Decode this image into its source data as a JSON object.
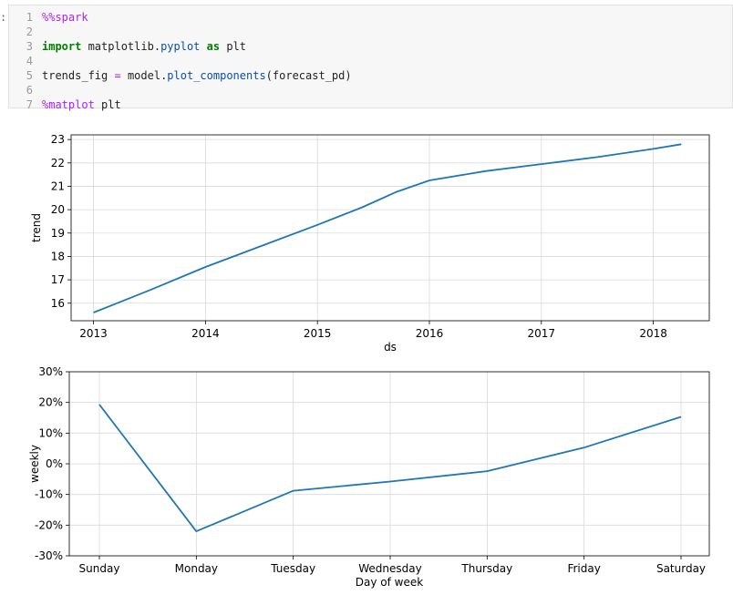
{
  "notebook": {
    "prompt_mark": ":",
    "code_lines": [
      {
        "n": "1",
        "parts": [
          {
            "t": "%%spark",
            "c": "magic"
          }
        ]
      },
      {
        "n": "2",
        "parts": []
      },
      {
        "n": "3",
        "parts": [
          {
            "t": "import",
            "c": "kw"
          },
          {
            "t": " matplotlib.",
            "c": ""
          },
          {
            "t": "pyplot",
            "c": "mod"
          },
          {
            "t": " ",
            "c": ""
          },
          {
            "t": "as",
            "c": "kw"
          },
          {
            "t": " plt",
            "c": ""
          }
        ]
      },
      {
        "n": "4",
        "parts": []
      },
      {
        "n": "5",
        "parts": [
          {
            "t": "trends_fig ",
            "c": ""
          },
          {
            "t": "=",
            "c": "op"
          },
          {
            "t": " model.",
            "c": ""
          },
          {
            "t": "plot_components",
            "c": "fn"
          },
          {
            "t": "(forecast_pd)",
            "c": ""
          }
        ]
      },
      {
        "n": "6",
        "parts": []
      },
      {
        "n": "7",
        "parts": [
          {
            "t": "%matplot",
            "c": "magic"
          },
          {
            "t": " plt",
            "c": ""
          }
        ]
      }
    ]
  },
  "colors": {
    "line": "#1f77b4",
    "grid": "#d9d9d9",
    "axis": "#000000"
  },
  "chart_data": [
    {
      "type": "line",
      "title": "",
      "xlabel": "ds",
      "ylabel": "trend",
      "xlim": [
        2012.8,
        2018.5
      ],
      "ylim": [
        15.25,
        23.2
      ],
      "x_ticks": [
        2013,
        2014,
        2015,
        2016,
        2017,
        2018
      ],
      "x_tick_labels": [
        "2013",
        "2014",
        "2015",
        "2016",
        "2017",
        "2018"
      ],
      "y_ticks": [
        16,
        17,
        18,
        19,
        20,
        21,
        22,
        23
      ],
      "y_tick_labels": [
        "16",
        "17",
        "18",
        "19",
        "20",
        "21",
        "22",
        "23"
      ],
      "grid": true,
      "series": [
        {
          "x": [
            2013.0,
            2013.5,
            2014.0,
            2014.5,
            2015.0,
            2015.4,
            2015.7,
            2016.0,
            2016.5,
            2017.0,
            2017.5,
            2018.0,
            2018.25
          ],
          "y": [
            15.6,
            16.55,
            17.55,
            18.45,
            19.35,
            20.1,
            20.75,
            21.25,
            21.65,
            21.95,
            22.25,
            22.6,
            22.8
          ]
        }
      ]
    },
    {
      "type": "line",
      "title": "",
      "xlabel": "Day of week",
      "ylabel": "weekly",
      "categories": [
        "Sunday",
        "Monday",
        "Tuesday",
        "Wednesday",
        "Thursday",
        "Friday",
        "Saturday"
      ],
      "ylim": [
        -30,
        30
      ],
      "y_ticks": [
        -30,
        -20,
        -10,
        0,
        10,
        20,
        30
      ],
      "y_tick_labels": [
        "-30%",
        "-20%",
        "-10%",
        "0%",
        "10%",
        "20%",
        "30%"
      ],
      "grid": true,
      "series": [
        {
          "values": [
            19.3,
            -22,
            -8.8,
            -5.8,
            -2.4,
            5.3,
            15.3
          ]
        }
      ]
    }
  ]
}
